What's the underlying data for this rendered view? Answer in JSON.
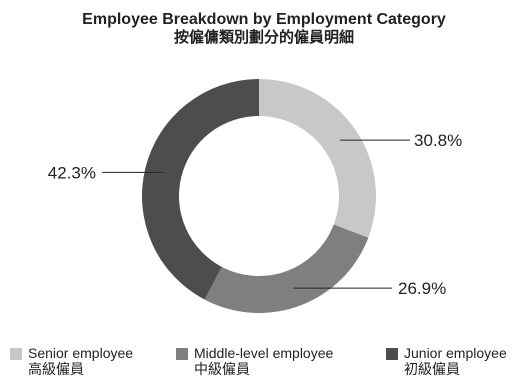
{
  "chart_data": {
    "type": "pie",
    "title": "Employee Breakdown by Employment Category",
    "subtitle": "按僱傭類別劃分的僱員明細",
    "donut": true,
    "categories": [
      "Senior employee",
      "Middle-level employee",
      "Junior employee"
    ],
    "categories_zh": [
      "高級僱員",
      "中級僱員",
      "初級僱員"
    ],
    "values": [
      30.8,
      26.9,
      42.3
    ],
    "value_labels": [
      "30.8%",
      "26.9%",
      "42.3%"
    ],
    "colors": [
      "#c8c8c8",
      "#7f7f7f",
      "#4d4d4d"
    ],
    "legend_position": "bottom"
  }
}
